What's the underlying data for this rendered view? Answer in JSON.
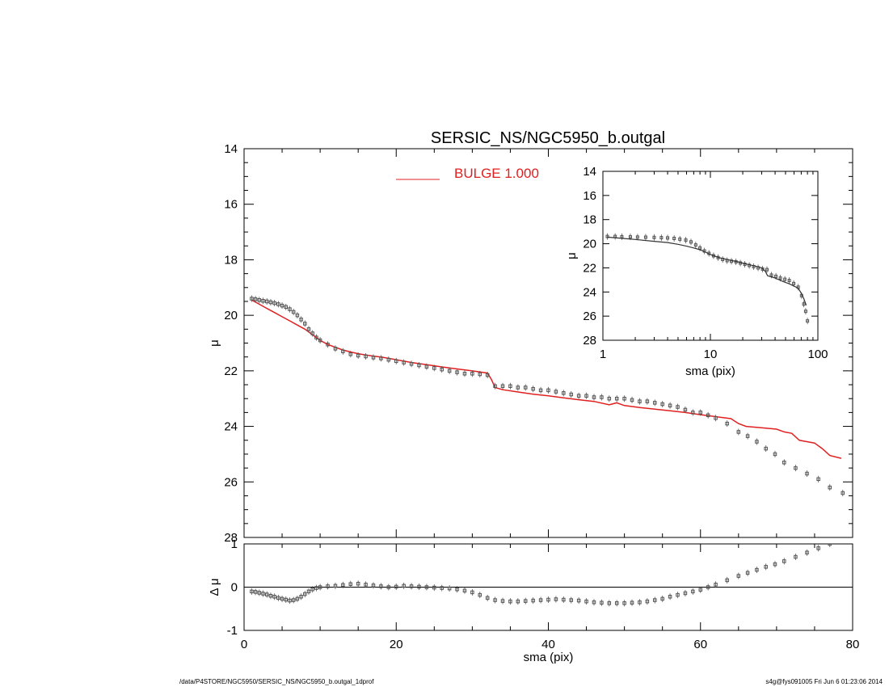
{
  "title": "SERSIC_NS/NGC5950_b.outgal",
  "footer_left": "/data/P4STORE/NGC5950/SERSIC_NS/NGC5950_b.outgal_1dprof",
  "footer_right": "s4g@fys091005  Fri Jun  6 01:23:06 2014",
  "colors": {
    "model": "#e02020",
    "data": "#555555",
    "axis": "#000000"
  },
  "chart_data": [
    {
      "id": "main-profile",
      "type": "scatter",
      "title": "SERSIC_NS/NGC5950_b.outgal",
      "xlabel": "",
      "ylabel": "μ",
      "xlim": [
        0,
        80
      ],
      "ylim": [
        28,
        14
      ],
      "y_inverted": true,
      "yticks": [
        14,
        16,
        18,
        20,
        22,
        24,
        26,
        28
      ],
      "legend": {
        "label": "BULGE  1.000",
        "placement": "top-center"
      },
      "series": [
        {
          "name": "BULGE  1.000",
          "kind": "line",
          "color": "#e02020",
          "x": [
            1.0,
            2.0,
            3.0,
            4.0,
            5.0,
            6.0,
            7.0,
            8.0,
            9.0,
            10.0,
            11.0,
            12.0,
            13.0,
            14.0,
            15.0,
            16.0,
            17.0,
            18.0,
            19.0,
            20.0,
            22.0,
            24.0,
            26.0,
            28.0,
            30.0,
            32.0,
            32.5,
            33.0,
            34.0,
            36.0,
            38.0,
            40.0,
            42.0,
            44.0,
            46.0,
            48.0,
            49.0,
            50.0,
            52.0,
            54.0,
            56.0,
            58.0,
            60.0,
            62.0,
            64.0,
            65.0,
            66.0,
            68.0,
            70.0,
            71.0,
            72.0,
            73.0,
            74.0,
            75.0,
            76.0,
            77.0,
            78.5
          ],
          "y": [
            19.45,
            19.6,
            19.75,
            19.9,
            20.05,
            20.2,
            20.35,
            20.5,
            20.7,
            20.9,
            21.05,
            21.15,
            21.25,
            21.32,
            21.38,
            21.43,
            21.47,
            21.5,
            21.55,
            21.6,
            21.7,
            21.78,
            21.86,
            21.93,
            22.0,
            22.08,
            22.3,
            22.6,
            22.68,
            22.76,
            22.84,
            22.9,
            22.97,
            23.04,
            23.1,
            23.22,
            23.15,
            23.25,
            23.32,
            23.38,
            23.44,
            23.5,
            23.58,
            23.65,
            23.72,
            23.9,
            24.0,
            24.05,
            24.1,
            24.2,
            24.25,
            24.5,
            24.55,
            24.6,
            24.8,
            25.05,
            25.15
          ]
        },
        {
          "name": "",
          "kind": "points",
          "color": "#555555",
          "x": [
            1.0,
            1.5,
            2.0,
            2.5,
            3.0,
            3.5,
            4.0,
            4.5,
            5.0,
            5.5,
            6.0,
            6.5,
            7.0,
            7.5,
            8.0,
            8.5,
            9.0,
            9.5,
            10.0,
            11.0,
            12.0,
            13.0,
            14.0,
            15.0,
            16.0,
            17.0,
            18.0,
            19.0,
            20.0,
            21.0,
            22.0,
            23.0,
            24.0,
            25.0,
            26.0,
            27.0,
            28.0,
            29.0,
            30.0,
            31.0,
            32.0,
            33.0,
            34.0,
            35.0,
            36.0,
            37.0,
            38.0,
            39.0,
            40.0,
            41.0,
            42.0,
            43.0,
            44.0,
            45.0,
            46.0,
            47.0,
            48.0,
            49.0,
            50.0,
            51.0,
            52.0,
            53.0,
            54.0,
            55.0,
            56.0,
            57.0,
            58.0,
            59.0,
            60.0,
            61.0,
            62.0,
            63.5,
            65.0,
            66.2,
            67.4,
            68.6,
            69.8,
            71.0,
            72.5,
            74.0,
            75.5,
            77.0,
            78.7
          ],
          "y": [
            19.4,
            19.42,
            19.45,
            19.48,
            19.5,
            19.53,
            19.56,
            19.6,
            19.65,
            19.7,
            19.78,
            19.88,
            20.0,
            20.15,
            20.3,
            20.5,
            20.65,
            20.8,
            20.9,
            21.05,
            21.2,
            21.3,
            21.4,
            21.45,
            21.48,
            21.52,
            21.55,
            21.6,
            21.65,
            21.7,
            21.75,
            21.8,
            21.85,
            21.9,
            21.95,
            22.0,
            22.05,
            22.1,
            22.1,
            22.12,
            22.15,
            22.55,
            22.55,
            22.55,
            22.6,
            22.6,
            22.65,
            22.7,
            22.7,
            22.75,
            22.8,
            22.85,
            22.9,
            22.9,
            22.95,
            22.95,
            23.0,
            23.0,
            23.0,
            23.05,
            23.1,
            23.1,
            23.15,
            23.2,
            23.25,
            23.3,
            23.4,
            23.5,
            23.5,
            23.6,
            23.7,
            23.9,
            24.2,
            24.35,
            24.55,
            24.8,
            25.0,
            25.3,
            25.5,
            25.7,
            25.9,
            26.2,
            26.4
          ]
        }
      ]
    },
    {
      "id": "residuals",
      "type": "scatter",
      "xlabel": "sma (pix)",
      "ylabel": "Δ μ",
      "xlim": [
        0,
        80
      ],
      "ylim": [
        -1,
        1
      ],
      "xticks": [
        0,
        20,
        40,
        60,
        80
      ],
      "yticks": [
        -1,
        0,
        1
      ],
      "zero_line": true,
      "series": [
        {
          "name": "",
          "kind": "points",
          "color": "#555555",
          "x": [
            1.0,
            1.5,
            2.0,
            2.5,
            3.0,
            3.5,
            4.0,
            4.5,
            5.0,
            5.5,
            6.0,
            6.5,
            7.0,
            7.5,
            8.0,
            8.5,
            9.0,
            9.5,
            10.0,
            11.0,
            12.0,
            13.0,
            14.0,
            15.0,
            16.0,
            17.0,
            18.0,
            19.0,
            20.0,
            21.0,
            22.0,
            23.0,
            24.0,
            25.0,
            26.0,
            27.0,
            28.0,
            29.0,
            30.0,
            31.0,
            32.0,
            33.0,
            34.0,
            35.0,
            36.0,
            37.0,
            38.0,
            39.0,
            40.0,
            41.0,
            42.0,
            43.0,
            44.0,
            45.0,
            46.0,
            47.0,
            48.0,
            49.0,
            50.0,
            51.0,
            52.0,
            53.0,
            54.0,
            55.0,
            56.0,
            57.0,
            58.0,
            59.0,
            60.0,
            61.0,
            62.0,
            63.5,
            65.0,
            66.2,
            67.4,
            68.6,
            69.8,
            71.0,
            72.5,
            74.0,
            75.5,
            77.0
          ],
          "y": [
            -0.1,
            -0.11,
            -0.13,
            -0.15,
            -0.17,
            -0.2,
            -0.22,
            -0.25,
            -0.27,
            -0.29,
            -0.31,
            -0.3,
            -0.27,
            -0.22,
            -0.16,
            -0.1,
            -0.05,
            -0.02,
            0.0,
            0.02,
            0.03,
            0.05,
            0.07,
            0.08,
            0.06,
            0.04,
            0.02,
            0.0,
            0.01,
            0.03,
            0.02,
            0.01,
            0.0,
            -0.01,
            -0.02,
            -0.03,
            -0.05,
            -0.08,
            -0.12,
            -0.18,
            -0.25,
            -0.3,
            -0.32,
            -0.33,
            -0.33,
            -0.32,
            -0.31,
            -0.3,
            -0.29,
            -0.28,
            -0.29,
            -0.3,
            -0.31,
            -0.33,
            -0.35,
            -0.36,
            -0.37,
            -0.37,
            -0.37,
            -0.36,
            -0.35,
            -0.33,
            -0.3,
            -0.27,
            -0.22,
            -0.18,
            -0.14,
            -0.1,
            -0.06,
            0.0,
            0.06,
            0.16,
            0.26,
            0.33,
            0.4,
            0.47,
            0.53,
            0.6,
            0.7,
            0.8,
            0.9,
            1.0
          ]
        }
      ]
    },
    {
      "id": "inset-log",
      "type": "scatter",
      "xlabel": "sma (pix)",
      "ylabel": "μ",
      "xscale": "log",
      "xlim": [
        1,
        100
      ],
      "ylim": [
        28,
        14
      ],
      "y_inverted": true,
      "xticks": [
        1,
        10,
        100
      ],
      "yticks": [
        14,
        16,
        18,
        20,
        22,
        24,
        26,
        28
      ],
      "series": [
        {
          "name": "",
          "kind": "points",
          "color": "#555555",
          "x": [
            1.1,
            1.3,
            1.5,
            1.8,
            2.1,
            2.5,
            3.0,
            3.5,
            4.0,
            4.6,
            5.2,
            5.9,
            6.6,
            7.3,
            8.0,
            8.8,
            9.7,
            10.7,
            11.8,
            13.0,
            14.3,
            15.7,
            17.3,
            19.0,
            20.9,
            23.0,
            25.3,
            27.8,
            30.6,
            33.6,
            37.0,
            40.7,
            44.8,
            49.3,
            54.2,
            59.6,
            65.6,
            70.5,
            74.0,
            77.0,
            80.0
          ],
          "y": [
            19.4,
            19.4,
            19.42,
            19.43,
            19.45,
            19.46,
            19.48,
            19.5,
            19.52,
            19.56,
            19.62,
            19.7,
            19.85,
            20.1,
            20.35,
            20.6,
            20.8,
            21.0,
            21.15,
            21.3,
            21.4,
            21.45,
            21.5,
            21.6,
            21.7,
            21.8,
            21.9,
            22.0,
            22.1,
            22.15,
            22.6,
            22.7,
            22.85,
            22.95,
            23.05,
            23.3,
            23.6,
            24.3,
            25.0,
            25.6,
            26.4
          ]
        },
        {
          "name": "",
          "kind": "line",
          "color": "#333333",
          "x": [
            1.1,
            1.5,
            2.0,
            3.0,
            4.0,
            5.0,
            6.0,
            7.0,
            8.0,
            9.0,
            10.0,
            12.0,
            15.0,
            18.0,
            22.0,
            26.0,
            30.0,
            32.5,
            34.0,
            40.0,
            48.0,
            55.0,
            62.0,
            66.0,
            70.0,
            74.0,
            78.0
          ],
          "y": [
            19.45,
            19.55,
            19.65,
            19.8,
            19.9,
            20.05,
            20.2,
            20.35,
            20.5,
            20.7,
            20.9,
            21.15,
            21.35,
            21.5,
            21.7,
            21.85,
            22.0,
            22.3,
            22.65,
            22.85,
            23.15,
            23.35,
            23.58,
            23.72,
            24.1,
            24.55,
            25.1
          ]
        }
      ]
    }
  ]
}
